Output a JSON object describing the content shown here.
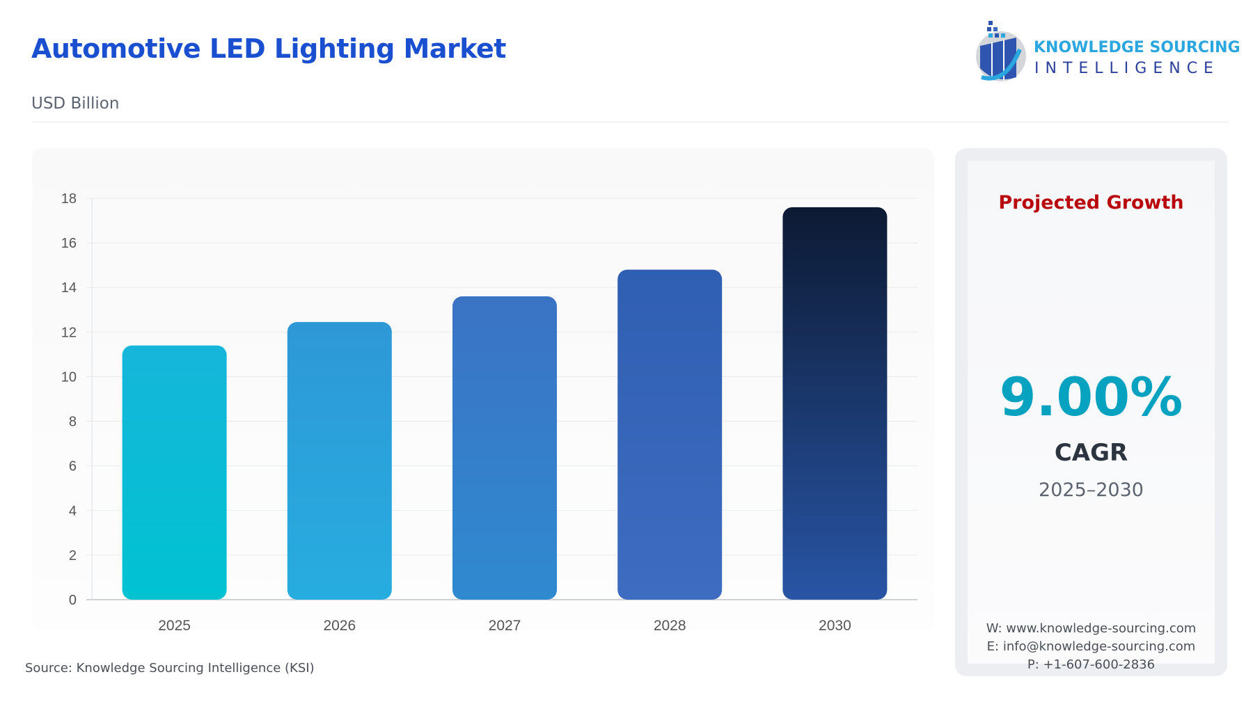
{
  "header": {
    "title": "Automotive LED Lighting Market",
    "unit": "USD Billion"
  },
  "logo": {
    "line1": "KNOWLEDGE SOURCING",
    "line2": "INTELLIGENCE"
  },
  "chart_data": {
    "type": "bar",
    "categories": [
      "2025",
      "2026",
      "2027",
      "2028",
      "2030"
    ],
    "values": [
      11.4,
      12.45,
      13.6,
      14.8,
      17.6
    ],
    "ylim": [
      0,
      18
    ],
    "yticks": [
      0,
      2,
      4,
      6,
      8,
      10,
      12,
      14,
      16,
      18
    ],
    "grid": true,
    "colors": [
      [
        "#16b6da",
        "#00c2d1"
      ],
      [
        "#2e98d6",
        "#27ade0"
      ],
      [
        "#3b73c4",
        "#2f8ad0"
      ],
      [
        "#2f5fb2",
        "#3e6cc0"
      ],
      [
        "#0d1a33",
        "#2855a5"
      ]
    ]
  },
  "source": "Source: Knowledge Sourcing Intelligence (KSI)",
  "side": {
    "heading": "Projected Growth",
    "cagr_value": "9.00%",
    "cagr_label": "CAGR",
    "period": "2025–2030",
    "website": "W: www.knowledge-sourcing.com",
    "email": "E: info@knowledge-sourcing.com",
    "phone": "P: +1-607-600-2836"
  }
}
